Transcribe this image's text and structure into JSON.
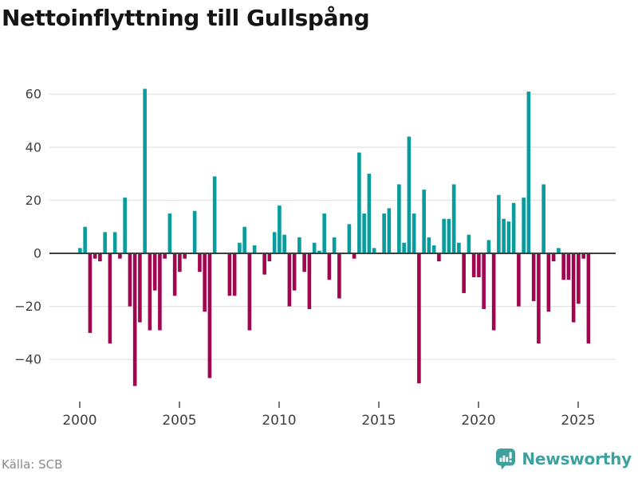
{
  "title": "Nettoinflyttning till Gullspång",
  "source": "Källa: SCB",
  "brand": {
    "name": "Newsworthy",
    "color": "#3fa19e",
    "icon": "newsworthy-bubble-chart-icon"
  },
  "chart_data": {
    "type": "bar",
    "title": "Nettoinflyttning till Gullspång",
    "x_unit": "quarter",
    "start_year": 2000,
    "start_quarter": 1,
    "end_period": "2025 Q3",
    "x_tick_years": [
      2000,
      2005,
      2010,
      2015,
      2020,
      2025
    ],
    "x_tick_labels": [
      "2000",
      "2005",
      "2010",
      "2015",
      "2020",
      "2025"
    ],
    "y_ticks": [
      60,
      40,
      20,
      0,
      -20,
      -40
    ],
    "ylim": [
      -52,
      66
    ],
    "grid": true,
    "legend": false,
    "positive_color": "#089c9c",
    "negative_color": "#a1054f",
    "axis_color": "#3d3d3d",
    "gridline_color": "#e4e4e4",
    "series": [
      {
        "name": "Nettoinflyttning",
        "values": [
          2,
          10,
          -30,
          -2,
          -3,
          8,
          -34,
          8,
          -2,
          21,
          -20,
          -50,
          -26,
          62,
          -29,
          -14,
          -29,
          -2,
          15,
          -16,
          -7,
          -2,
          0,
          16,
          -7,
          -22,
          -47,
          29,
          0,
          0,
          -16,
          -16,
          4,
          10,
          -29,
          3,
          0,
          -8,
          -3,
          8,
          18,
          7,
          -20,
          -14,
          6,
          -7,
          -21,
          4,
          1,
          15,
          -10,
          6,
          -17,
          0,
          11,
          -2,
          38,
          15,
          30,
          2,
          0,
          15,
          17,
          0,
          26,
          4,
          44,
          15,
          -49,
          24,
          6,
          3,
          -3,
          13,
          13,
          26,
          4,
          -15,
          7,
          -9,
          -9,
          -21,
          5,
          -29,
          22,
          13,
          12,
          19,
          -20,
          21,
          61,
          -18,
          -34,
          26,
          -22,
          -3,
          2,
          -10,
          -10,
          -26,
          -19,
          -2,
          -34
        ]
      }
    ]
  }
}
